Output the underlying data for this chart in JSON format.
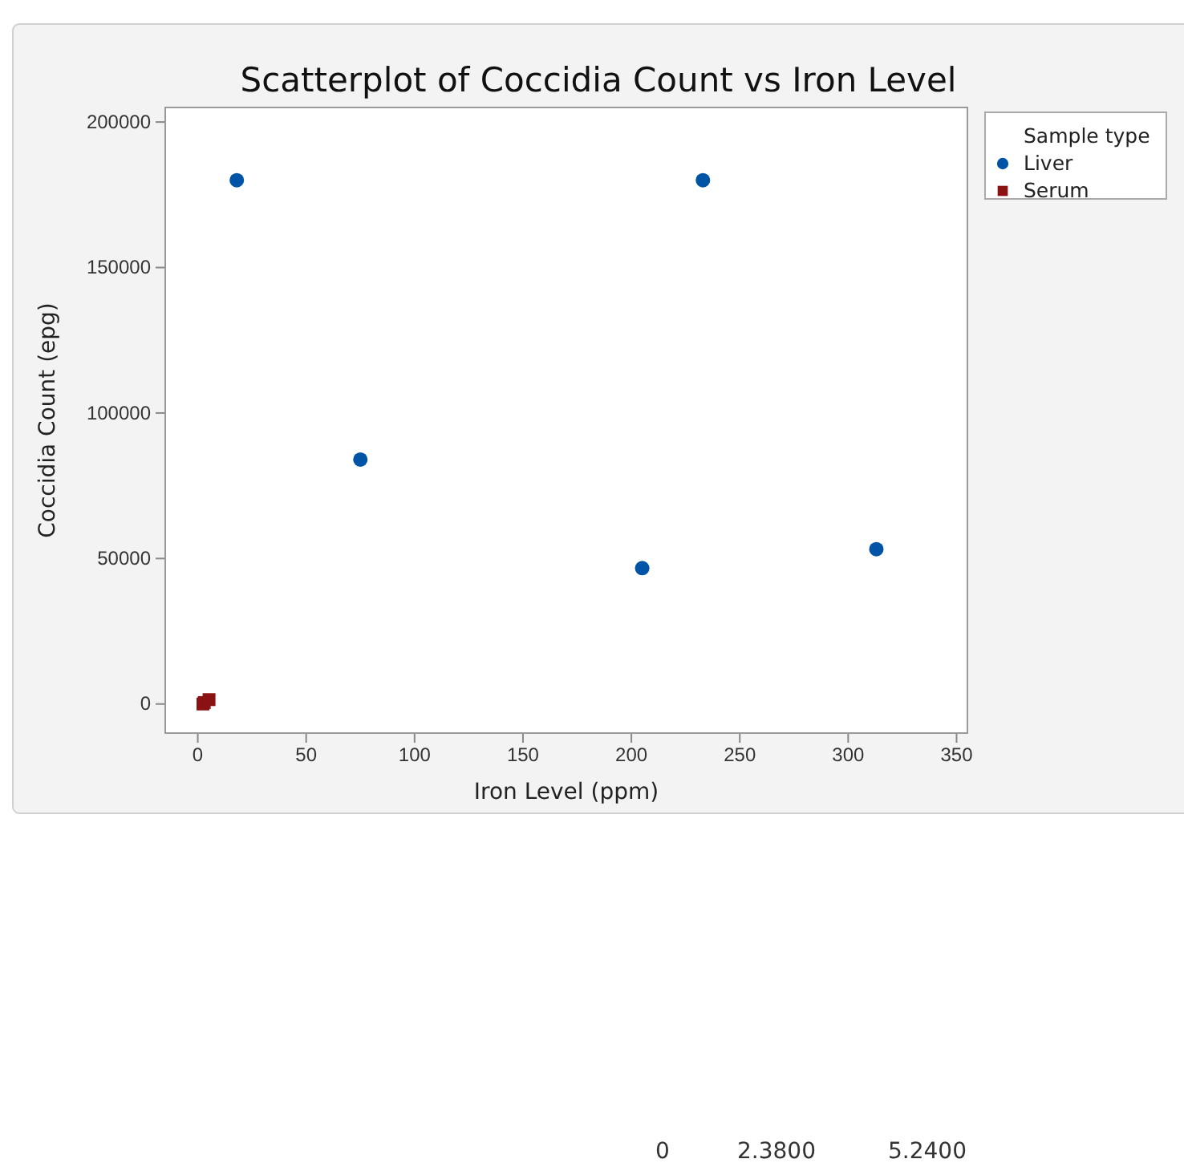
{
  "chart_data": {
    "type": "scatter",
    "title": "Scatterplot of Coccidia Count vs Iron Level",
    "xlabel": "Iron Level (ppm)",
    "ylabel": "Coccidia Count (epg)",
    "legend_title": "Sample type",
    "legend": "top right",
    "xlim": [
      -15,
      355
    ],
    "ylim": [
      -10000,
      205000
    ],
    "xticks": [
      0,
      50,
      100,
      150,
      200,
      250,
      300,
      350
    ],
    "yticks": [
      0,
      50000,
      100000,
      150000,
      200000
    ],
    "grid": false,
    "series": [
      {
        "name": "Liver",
        "color": "#0054a6",
        "marker": "circle",
        "x": [
          18,
          75,
          205,
          233,
          313
        ],
        "values": [
          180000,
          84000,
          46700,
          180000,
          53200
        ]
      },
      {
        "name": "Serum",
        "color": "#8b1212",
        "marker": "square",
        "x": [
          2.4,
          3,
          5.2
        ],
        "values": [
          0,
          500,
          1500
        ]
      }
    ],
    "annotations": [
      "0",
      "2.3800",
      "5.2400"
    ]
  }
}
